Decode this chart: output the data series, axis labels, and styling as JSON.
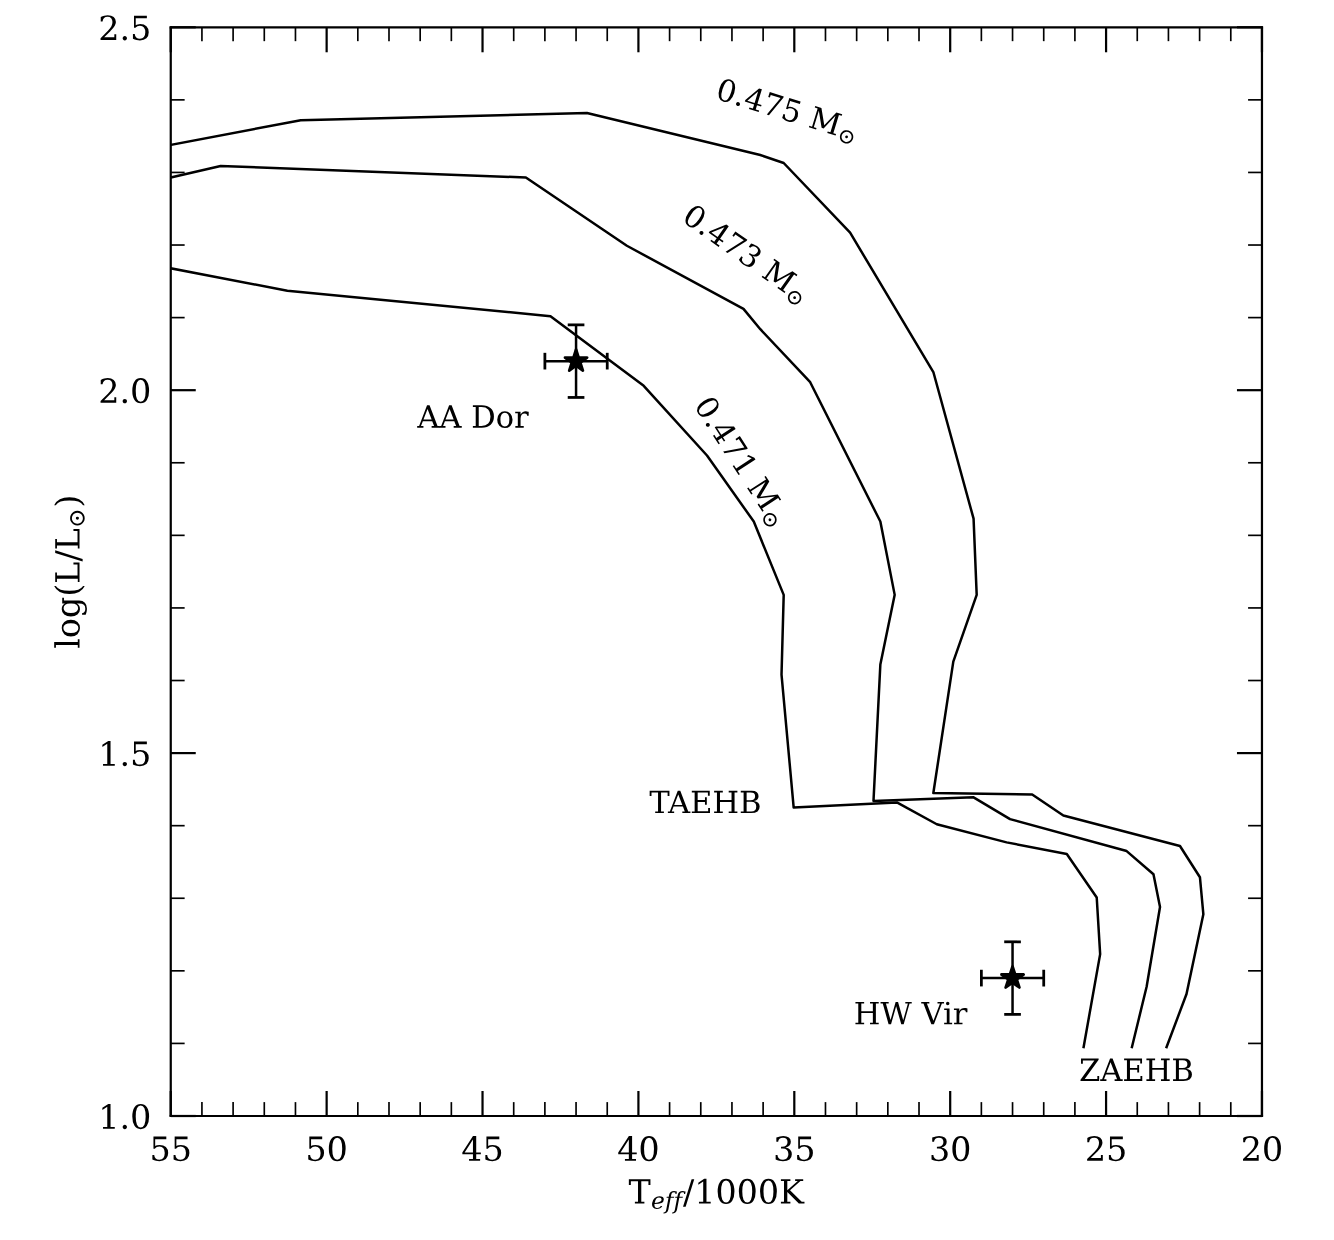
{
  "chart_data": {
    "type": "line",
    "xlabel": "T$_{eff}$/1000K",
    "ylabel": "log(L/L$_{⊙}$)",
    "xlim": [
      55,
      20
    ],
    "ylim": [
      1.0,
      2.5
    ],
    "xticks": [
      55,
      {
        "value": 54,
        "label": null
      },
      {
        "value": 53,
        "label": null
      },
      {
        "value": 52,
        "label": null
      },
      {
        "value": 51,
        "label": null
      },
      50,
      {
        "value": 49,
        "label": null
      },
      {
        "value": 48,
        "label": null
      },
      {
        "value": 47,
        "label": null
      },
      {
        "value": 46,
        "label": null
      },
      45,
      {
        "value": 44,
        "label": null
      },
      {
        "value": 43,
        "label": null
      },
      {
        "value": 42,
        "label": null
      },
      {
        "value": 41,
        "label": null
      },
      40,
      {
        "value": 39,
        "label": null
      },
      {
        "value": 38,
        "label": null
      },
      {
        "value": 37,
        "label": null
      },
      {
        "value": 36,
        "label": null
      },
      35,
      {
        "value": 34,
        "label": null
      },
      {
        "value": 33,
        "label": null
      },
      {
        "value": 32,
        "label": null
      },
      {
        "value": 31,
        "label": null
      },
      30,
      {
        "value": 29,
        "label": null
      },
      {
        "value": 28,
        "label": null
      },
      {
        "value": 27,
        "label": null
      },
      {
        "value": 26,
        "label": null
      },
      25,
      {
        "value": 24,
        "label": null
      },
      {
        "value": 23,
        "label": null
      },
      {
        "value": 22,
        "label": null
      },
      {
        "value": 21,
        "label": null
      },
      20
    ],
    "yticks": [
      {
        "value": 1.0,
        "label": "1.0"
      },
      {
        "value": 1.1,
        "label": null
      },
      {
        "value": 1.2,
        "label": null
      },
      {
        "value": 1.3,
        "label": null
      },
      {
        "value": 1.4,
        "label": null
      },
      1.5,
      {
        "value": 1.6,
        "label": null
      },
      {
        "value": 1.7,
        "label": null
      },
      {
        "value": 1.8,
        "label": null
      },
      {
        "value": 1.9,
        "label": null
      },
      {
        "value": 2.0,
        "label": "2.0"
      },
      {
        "value": 2.1,
        "label": null
      },
      {
        "value": 2.2,
        "label": null
      },
      {
        "value": 2.3,
        "label": null
      },
      {
        "value": 2.4,
        "label": null
      },
      2.5
    ],
    "grid": false,
    "series": [
      {
        "name": "0.475 M$_{⊙}$",
        "color": "#000000",
        "line_style": "solid",
        "marker": "none",
        "x": [
          55,
          50.83,
          41.65,
          36.09,
          35.34,
          33.21,
          30.54,
          29.25,
          29.15,
          29.9,
          30.54,
          27.37,
          26.37,
          22.63,
          21.99,
          21.88,
          22.42,
          23.06
        ],
        "values": [
          2.338,
          2.372,
          2.382,
          2.324,
          2.313,
          2.217,
          2.025,
          1.823,
          1.718,
          1.626,
          1.445,
          1.443,
          1.414,
          1.372,
          1.329,
          1.278,
          1.168,
          1.095
        ]
      },
      {
        "name": "0.473 M$_{⊙}$",
        "color": "#000000",
        "line_style": "solid",
        "marker": "none",
        "x": [
          55,
          53.4,
          43.61,
          40.37,
          36.63,
          36.09,
          34.49,
          32.24,
          31.78,
          32.24,
          32.46,
          29.25,
          28.08,
          24.34,
          23.48,
          23.27,
          23.7,
          24.17
        ],
        "values": [
          2.293,
          2.309,
          2.293,
          2.199,
          2.112,
          2.084,
          2.011,
          1.819,
          1.718,
          1.622,
          1.434,
          1.439,
          1.409,
          1.365,
          1.333,
          1.288,
          1.178,
          1.095
        ]
      },
      {
        "name": "0.471 M$_{⊙}$",
        "color": "#000000",
        "line_style": "solid",
        "marker": "none",
        "x": [
          55,
          51.26,
          42.82,
          39.83,
          37.8,
          36.3,
          35.34,
          35.41,
          35.02,
          31.71,
          30.43,
          28.19,
          26.26,
          25.3,
          25.19,
          25.72
        ],
        "values": [
          2.168,
          2.137,
          2.102,
          2.006,
          1.91,
          1.819,
          1.718,
          1.608,
          1.425,
          1.432,
          1.402,
          1.377,
          1.361,
          1.301,
          1.223,
          1.095
        ]
      },
      {
        "name": "AA Dor",
        "type": "scatter",
        "color": "#000000",
        "marker": "star",
        "x": [
          42.0
        ],
        "values": [
          2.04
        ],
        "errors": [
          0.05
        ],
        "xerrors": [
          1.0
        ]
      },
      {
        "name": "HW Vir",
        "type": "scatter",
        "color": "#000000",
        "marker": "star",
        "x": [
          28.0
        ],
        "values": [
          1.19
        ],
        "errors": [
          0.05
        ],
        "xerrors": [
          1.0
        ]
      }
    ],
    "annotations": [
      "TAEHB",
      "ZAEHB"
    ]
  }
}
